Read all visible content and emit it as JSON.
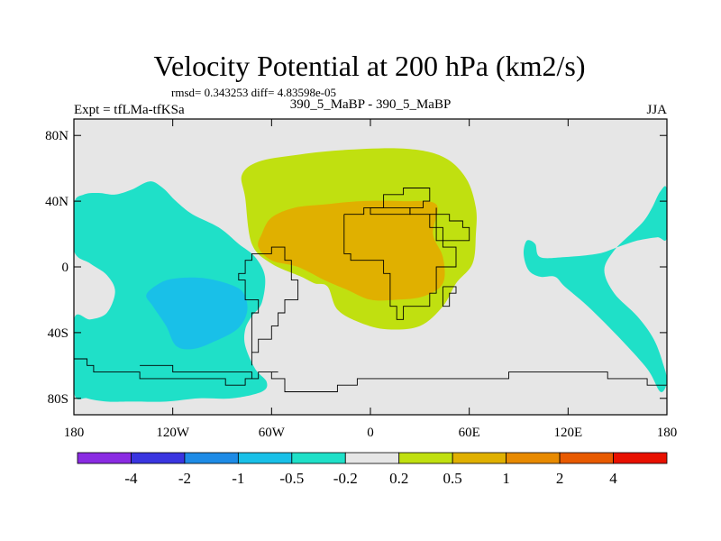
{
  "chart_data": {
    "type": "heatmap",
    "title": "Velocity Potential at 200 hPa (km2/s)",
    "stats_line": "rmsd= 0.343253 diff= 4.83598e-05",
    "left_label": "Expt = tfLMa-tfKSa",
    "center_label": "390_5_MaBP - 390_5_MaBP",
    "right_label": "JJA",
    "x_ticks": [
      {
        "value": -180,
        "label": "180"
      },
      {
        "value": -120,
        "label": "120W"
      },
      {
        "value": -60,
        "label": "60W"
      },
      {
        "value": 0,
        "label": "0"
      },
      {
        "value": 60,
        "label": "60E"
      },
      {
        "value": 120,
        "label": "120E"
      },
      {
        "value": 180,
        "label": "180"
      }
    ],
    "y_ticks": [
      {
        "value": 80,
        "label": "80N"
      },
      {
        "value": 40,
        "label": "40N"
      },
      {
        "value": 0,
        "label": "0"
      },
      {
        "value": -40,
        "label": "40S"
      },
      {
        "value": -80,
        "label": "80S"
      }
    ],
    "xlim": [
      -180,
      180
    ],
    "ylim": [
      -90,
      90
    ],
    "background_color": "#e6e6e6",
    "colorbar": {
      "colors": [
        "#8a2be2",
        "#3a35e0",
        "#1e8be6",
        "#19c0e8",
        "#1fe0c8",
        "#e6e6e6",
        "#c0e010",
        "#e0b000",
        "#e88a00",
        "#e85a00",
        "#e81000"
      ],
      "labels": [
        "-4",
        "-2",
        "-1",
        "-0.5",
        "-0.2",
        "0.2",
        "0.5",
        "1",
        "2",
        "4"
      ]
    },
    "regions": [
      {
        "name": "pacific-west-negative",
        "level": -0.2,
        "color": "#1fe0c8",
        "lonlat": [
          [
            -180,
            38
          ],
          [
            -174,
            44
          ],
          [
            -165,
            45
          ],
          [
            -155,
            44
          ],
          [
            -145,
            47
          ],
          [
            -134,
            52
          ],
          [
            -126,
            48
          ],
          [
            -118,
            40
          ],
          [
            -108,
            32
          ],
          [
            -92,
            24
          ],
          [
            -80,
            14
          ],
          [
            -70,
            6
          ],
          [
            -64,
            -6
          ],
          [
            -66,
            -22
          ],
          [
            -72,
            -30
          ],
          [
            -76,
            -38
          ],
          [
            -76,
            -48
          ],
          [
            -70,
            -62
          ],
          [
            -63,
            -70
          ],
          [
            -66,
            -76
          ],
          [
            -84,
            -80
          ],
          [
            -104,
            -80
          ],
          [
            -124,
            -82
          ],
          [
            -146,
            -82
          ],
          [
            -160,
            -82
          ],
          [
            -172,
            -80
          ],
          [
            -180,
            -76
          ],
          [
            -180,
            -32
          ],
          [
            -170,
            -32
          ],
          [
            -160,
            -28
          ],
          [
            -155,
            -15
          ],
          [
            -160,
            -5
          ],
          [
            -170,
            2
          ],
          [
            -180,
            10
          ]
        ]
      },
      {
        "name": "pacific-negative-core",
        "level": -0.5,
        "color": "#19c0e8",
        "lonlat": [
          [
            -128,
            -10
          ],
          [
            -118,
            -7
          ],
          [
            -100,
            -7
          ],
          [
            -82,
            -12
          ],
          [
            -76,
            -18
          ],
          [
            -75,
            -28
          ],
          [
            -81,
            -38
          ],
          [
            -96,
            -46
          ],
          [
            -108,
            -50
          ],
          [
            -118,
            -48
          ],
          [
            -124,
            -36
          ],
          [
            -132,
            -24
          ],
          [
            -136,
            -17
          ]
        ]
      },
      {
        "name": "east-negative",
        "level": -0.2,
        "color": "#1fe0c8",
        "lonlat": [
          [
            180,
            -70
          ],
          [
            178,
            -60
          ],
          [
            172,
            -44
          ],
          [
            162,
            -30
          ],
          [
            148,
            -16
          ],
          [
            142,
            -2
          ],
          [
            148,
            10
          ],
          [
            158,
            20
          ],
          [
            166,
            28
          ],
          [
            171,
            36
          ],
          [
            176,
            46
          ],
          [
            180,
            47
          ],
          [
            180,
            18
          ],
          [
            174,
            18
          ],
          [
            162,
            16
          ],
          [
            150,
            12
          ],
          [
            138,
            8
          ],
          [
            118,
            6
          ],
          [
            103,
            6
          ],
          [
            100,
            14
          ],
          [
            95,
            16
          ],
          [
            93,
            8
          ],
          [
            96,
            -2
          ],
          [
            103,
            -6
          ],
          [
            112,
            -6
          ],
          [
            118,
            -12
          ],
          [
            132,
            -24
          ],
          [
            150,
            -42
          ],
          [
            168,
            -62
          ],
          [
            176,
            -76
          ]
        ]
      },
      {
        "name": "central-positive",
        "level": 0.2,
        "color": "#c0e010",
        "lonlat": [
          [
            -76,
            42
          ],
          [
            -78,
            56
          ],
          [
            -68,
            64
          ],
          [
            -46,
            68
          ],
          [
            -18,
            71
          ],
          [
            20,
            72
          ],
          [
            44,
            67
          ],
          [
            58,
            54
          ],
          [
            64,
            36
          ],
          [
            64,
            20
          ],
          [
            62,
            2
          ],
          [
            52,
            -10
          ],
          [
            44,
            -24
          ],
          [
            30,
            -36
          ],
          [
            10,
            -38
          ],
          [
            -6,
            -34
          ],
          [
            -20,
            -26
          ],
          [
            -26,
            -12
          ],
          [
            -34,
            -10
          ],
          [
            -42,
            -6
          ],
          [
            -60,
            2
          ],
          [
            -72,
            14
          ]
        ]
      },
      {
        "name": "central-positive-core",
        "level": 0.5,
        "color": "#e0b000",
        "lonlat": [
          [
            -66,
            20
          ],
          [
            -60,
            30
          ],
          [
            -46,
            36
          ],
          [
            -28,
            38
          ],
          [
            -6,
            40
          ],
          [
            20,
            40
          ],
          [
            40,
            38
          ],
          [
            38,
            20
          ],
          [
            44,
            6
          ],
          [
            44,
            -10
          ],
          [
            32,
            -18
          ],
          [
            16,
            -20
          ],
          [
            0,
            -20
          ],
          [
            -14,
            -14
          ],
          [
            -28,
            -8
          ],
          [
            -44,
            0
          ],
          [
            -60,
            4
          ],
          [
            -68,
            12
          ]
        ]
      }
    ],
    "coastlines": [
      {
        "name": "antarctica-coast",
        "lonlat": [
          [
            -180,
            -58
          ],
          [
            -174,
            -59
          ],
          [
            -170,
            -64
          ],
          [
            -160,
            -66
          ],
          [
            -150,
            -65
          ],
          [
            -140,
            -69
          ],
          [
            -130,
            -70
          ],
          [
            -120,
            -70
          ],
          [
            -110,
            -69
          ],
          [
            -100,
            -70
          ],
          [
            -90,
            -71
          ],
          [
            -78,
            -70
          ],
          [
            -70,
            -66
          ],
          [
            -62,
            -63
          ],
          [
            -58,
            -64
          ],
          [
            -60,
            -69
          ],
          [
            -52,
            -75
          ],
          [
            -44,
            -78
          ],
          [
            -36,
            -77
          ],
          [
            -28,
            -75
          ],
          [
            -20,
            -72
          ],
          [
            -10,
            -70
          ],
          [
            0,
            -70
          ],
          [
            12,
            -69
          ],
          [
            24,
            -69
          ],
          [
            36,
            -68
          ],
          [
            48,
            -67
          ],
          [
            60,
            -67
          ],
          [
            72,
            -68
          ],
          [
            84,
            -66
          ],
          [
            96,
            -65
          ],
          [
            108,
            -66
          ],
          [
            120,
            -66
          ],
          [
            132,
            -66
          ],
          [
            144,
            -67
          ],
          [
            156,
            -69
          ],
          [
            168,
            -71
          ],
          [
            180,
            -73
          ]
        ]
      },
      {
        "name": "antarctic-peninsula",
        "lonlat": [
          [
            -140,
            -62
          ],
          [
            -122,
            -64
          ],
          [
            -104,
            -64
          ],
          [
            -90,
            -66
          ],
          [
            -80,
            -66
          ],
          [
            -74,
            -70
          ]
        ]
      },
      {
        "name": "south-america-coast",
        "lonlat": [
          [
            -50,
            -2
          ],
          [
            -50,
            -8
          ],
          [
            -46,
            -14
          ],
          [
            -46,
            -22
          ],
          [
            -52,
            -28
          ],
          [
            -56,
            -38
          ],
          [
            -62,
            -44
          ],
          [
            -68,
            -52
          ],
          [
            -72,
            -60
          ],
          [
            -74,
            -52
          ],
          [
            -74,
            -40
          ],
          [
            -72,
            -30
          ],
          [
            -70,
            -20
          ],
          [
            -76,
            -10
          ],
          [
            -80,
            -4
          ],
          [
            -78,
            2
          ],
          [
            -72,
            8
          ],
          [
            -62,
            10
          ],
          [
            -54,
            4
          ],
          [
            -50,
            -2
          ]
        ]
      },
      {
        "name": "africa-coast",
        "lonlat": [
          [
            -16,
            30
          ],
          [
            -6,
            36
          ],
          [
            10,
            37
          ],
          [
            24,
            32
          ],
          [
            34,
            31
          ],
          [
            34,
            22
          ],
          [
            40,
            14
          ],
          [
            44,
            10
          ],
          [
            52,
            11
          ],
          [
            50,
            0
          ],
          [
            40,
            -8
          ],
          [
            40,
            -18
          ],
          [
            34,
            -26
          ],
          [
            20,
            -34
          ],
          [
            16,
            -26
          ],
          [
            12,
            -14
          ],
          [
            10,
            -4
          ],
          [
            8,
            4
          ],
          [
            -2,
            5
          ],
          [
            -12,
            6
          ],
          [
            -16,
            14
          ],
          [
            -16,
            30
          ]
        ]
      },
      {
        "name": "arabia-coast",
        "lonlat": [
          [
            34,
            30
          ],
          [
            40,
            24
          ],
          [
            44,
            14
          ],
          [
            52,
            16
          ],
          [
            58,
            22
          ],
          [
            56,
            26
          ],
          [
            48,
            30
          ],
          [
            40,
            34
          ]
        ]
      },
      {
        "name": "madagascar",
        "lonlat": [
          [
            44,
            -14
          ],
          [
            48,
            -14
          ],
          [
            50,
            -18
          ],
          [
            48,
            -24
          ],
          [
            44,
            -24
          ],
          [
            44,
            -18
          ],
          [
            44,
            -14
          ]
        ]
      },
      {
        "name": "north-landmass",
        "lonlat": [
          [
            -2,
            36
          ],
          [
            8,
            44
          ],
          [
            20,
            46
          ],
          [
            30,
            46
          ],
          [
            36,
            40
          ],
          [
            32,
            34
          ],
          [
            24,
            32
          ],
          [
            12,
            30
          ],
          [
            2,
            30
          ],
          [
            -2,
            36
          ]
        ]
      }
    ]
  }
}
